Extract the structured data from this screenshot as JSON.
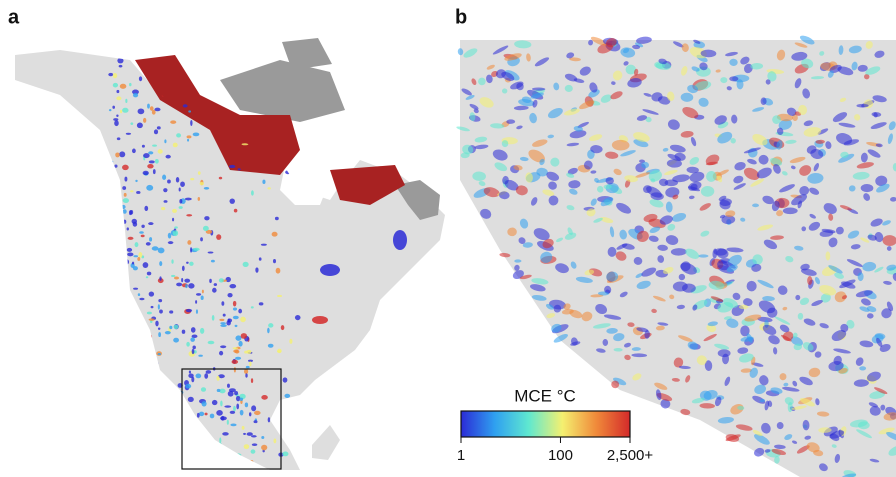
{
  "panels": [
    {
      "label": "a"
    },
    {
      "label": "b"
    }
  ],
  "colorbar": {
    "title": "MCE °C",
    "lim": [
      1,
      2500
    ],
    "scale": "log",
    "ticks": [
      1,
      100,
      {
        "value": 2500,
        "label": "2,500+"
      }
    ],
    "colors": [
      "#2b2bd6",
      "#2fa0f0",
      "#5fe8d0",
      "#f4f070",
      "#f08a3a",
      "#d42a2a"
    ]
  }
}
